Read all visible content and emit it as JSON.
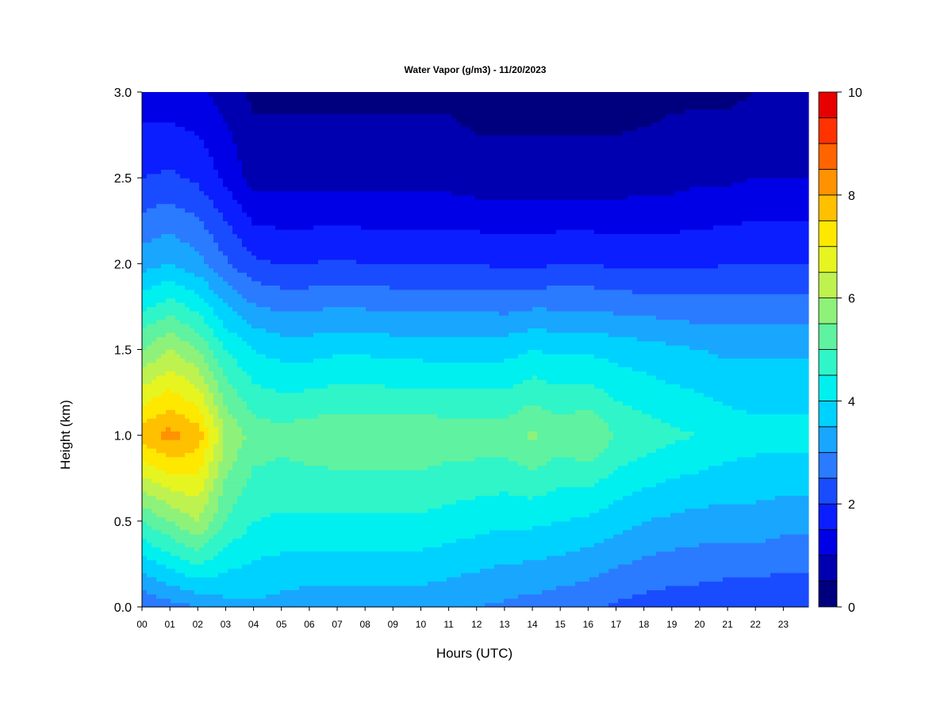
{
  "chart_data": {
    "type": "heatmap",
    "title": "Water Vapor (g/m3) - 11/20/2023",
    "xlabel": "Hours (UTC)",
    "ylabel": "Height (km)",
    "xlim": [
      0,
      23.9
    ],
    "ylim": [
      0.0,
      3.0
    ],
    "x_tick_labels": [
      "00",
      "01",
      "02",
      "03",
      "04",
      "05",
      "06",
      "07",
      "08",
      "09",
      "10",
      "11",
      "12",
      "13",
      "14",
      "15",
      "16",
      "17",
      "18",
      "19",
      "20",
      "21",
      "22",
      "23"
    ],
    "y_tick_labels": [
      "0.0",
      "0.5",
      "1.0",
      "1.5",
      "2.0",
      "2.5",
      "3.0"
    ],
    "y_tick_values": [
      0.0,
      0.5,
      1.0,
      1.5,
      2.0,
      2.5,
      3.0
    ],
    "colorbar": {
      "min": 0,
      "max": 10,
      "step": 0.5,
      "tick_labels": [
        "0",
        "2",
        "4",
        "6",
        "8",
        "10"
      ],
      "tick_values": [
        0,
        2,
        4,
        6,
        8,
        10
      ],
      "colors": [
        "#00007f",
        "#0000b0",
        "#0000e6",
        "#0b1eff",
        "#1a4cff",
        "#2a7bff",
        "#19a6ff",
        "#00d2ff",
        "#00f0f0",
        "#30f5c8",
        "#5ff2a0",
        "#8ef27a",
        "#bef24f",
        "#e6f520",
        "#ffe800",
        "#ffc000",
        "#ff9200",
        "#ff6400",
        "#ff3200",
        "#e60000",
        "#b00000",
        "#800000"
      ]
    },
    "hours": [
      0,
      1,
      2,
      3,
      4,
      5,
      6,
      7,
      8,
      9,
      10,
      11,
      12,
      13,
      14,
      15,
      16,
      17,
      18,
      19,
      20,
      21,
      22,
      23
    ],
    "heights": [
      0.0,
      0.5,
      1.0,
      1.5,
      2.0,
      2.5,
      3.0
    ],
    "series": [
      {
        "x": 0,
        "values": [
          2.5,
          5.0,
          7.8,
          5.5,
          3.3,
          2.0,
          1.2
        ]
      },
      {
        "x": 1,
        "values": [
          2.8,
          5.5,
          8.2,
          6.0,
          3.5,
          2.1,
          1.2
        ]
      },
      {
        "x": 2,
        "values": [
          3.0,
          6.0,
          7.8,
          5.5,
          3.2,
          1.9,
          1.1
        ]
      },
      {
        "x": 3,
        "values": [
          3.3,
          5.0,
          6.0,
          4.5,
          2.6,
          1.4,
          0.8
        ]
      },
      {
        "x": 4,
        "values": [
          3.4,
          4.5,
          5.3,
          4.0,
          2.1,
          0.8,
          0.4
        ]
      },
      {
        "x": 5,
        "values": [
          3.3,
          4.4,
          5.2,
          3.8,
          2.0,
          0.8,
          0.4
        ]
      },
      {
        "x": 6,
        "values": [
          3.2,
          4.4,
          5.3,
          3.8,
          2.0,
          0.8,
          0.4
        ]
      },
      {
        "x": 7,
        "values": [
          3.2,
          4.4,
          5.4,
          3.9,
          2.1,
          0.8,
          0.4
        ]
      },
      {
        "x": 8,
        "values": [
          3.2,
          4.4,
          5.4,
          3.9,
          2.0,
          0.8,
          0.4
        ]
      },
      {
        "x": 9,
        "values": [
          3.2,
          4.4,
          5.4,
          3.8,
          2.0,
          0.8,
          0.4
        ]
      },
      {
        "x": 10,
        "values": [
          3.2,
          4.4,
          5.4,
          3.8,
          2.0,
          0.8,
          0.4
        ]
      },
      {
        "x": 11,
        "values": [
          3.1,
          4.3,
          5.3,
          3.8,
          2.0,
          0.8,
          0.4
        ]
      },
      {
        "x": 12,
        "values": [
          3.0,
          4.2,
          5.3,
          3.8,
          2.0,
          0.7,
          0.3
        ]
      },
      {
        "x": 13,
        "values": [
          2.9,
          4.1,
          5.3,
          3.8,
          1.9,
          0.7,
          0.3
        ]
      },
      {
        "x": 14,
        "values": [
          2.8,
          4.1,
          5.6,
          4.0,
          1.9,
          0.7,
          0.3
        ]
      },
      {
        "x": 15,
        "values": [
          2.7,
          4.0,
          5.3,
          3.9,
          2.0,
          0.7,
          0.3
        ]
      },
      {
        "x": 16,
        "values": [
          2.6,
          3.9,
          5.5,
          3.9,
          2.0,
          0.7,
          0.3
        ]
      },
      {
        "x": 17,
        "values": [
          2.4,
          3.7,
          5.0,
          3.8,
          1.9,
          0.7,
          0.3
        ]
      },
      {
        "x": 18,
        "values": [
          2.3,
          3.5,
          4.8,
          3.7,
          1.9,
          0.8,
          0.3
        ]
      },
      {
        "x": 19,
        "values": [
          2.2,
          3.4,
          4.6,
          3.6,
          1.9,
          0.8,
          0.4
        ]
      },
      {
        "x": 20,
        "values": [
          2.2,
          3.3,
          4.5,
          3.5,
          1.9,
          0.9,
          0.4
        ]
      },
      {
        "x": 21,
        "values": [
          2.1,
          3.3,
          4.3,
          3.4,
          2.0,
          0.9,
          0.4
        ]
      },
      {
        "x": 22,
        "values": [
          2.1,
          3.3,
          4.2,
          3.4,
          2.0,
          1.0,
          0.5
        ]
      },
      {
        "x": 23,
        "values": [
          2.0,
          3.2,
          4.2,
          3.4,
          2.0,
          1.0,
          0.5
        ]
      }
    ]
  }
}
